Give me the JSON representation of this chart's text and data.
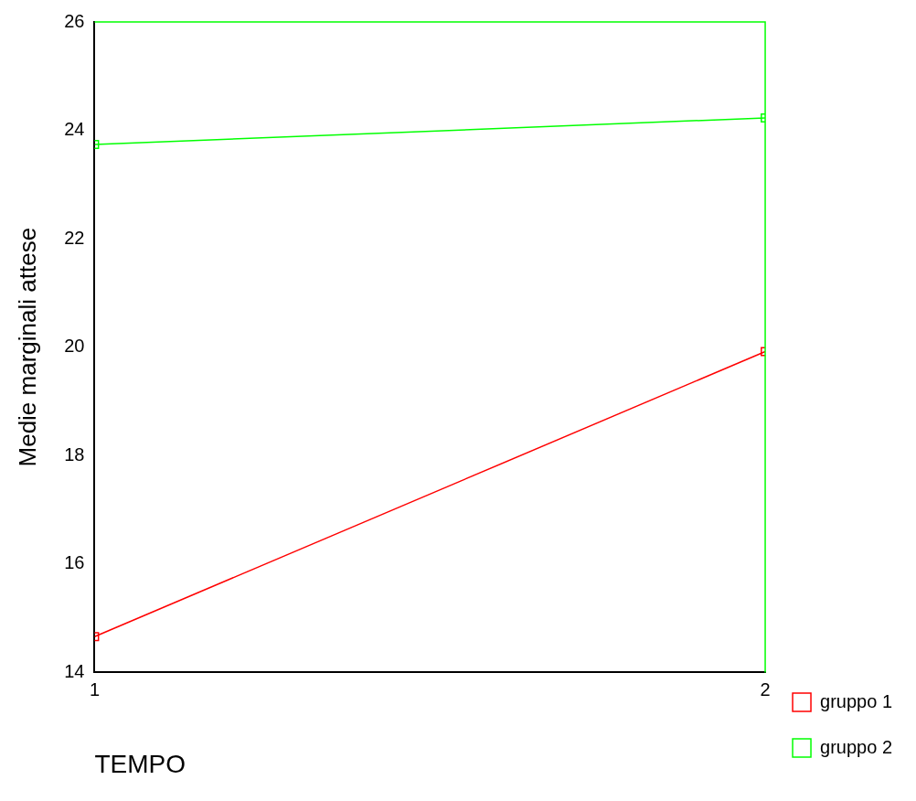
{
  "chart_data": {
    "type": "line",
    "xlabel": "TEMPO",
    "ylabel": "Medie marginali attese",
    "x": [
      1,
      2
    ],
    "xlim": [
      1,
      2
    ],
    "xticks": [
      1,
      2
    ],
    "ylim": [
      14,
      26
    ],
    "yticks": [
      14,
      16,
      18,
      20,
      22,
      24,
      26
    ],
    "series": [
      {
        "name": "gruppo 1",
        "color": "#ff0000",
        "values": [
          14.66,
          19.92
        ]
      },
      {
        "name": "gruppo 2",
        "color": "#00ff00",
        "values": [
          23.74,
          24.23
        ]
      }
    ],
    "marker": "square",
    "legend": "right",
    "grid": false
  }
}
